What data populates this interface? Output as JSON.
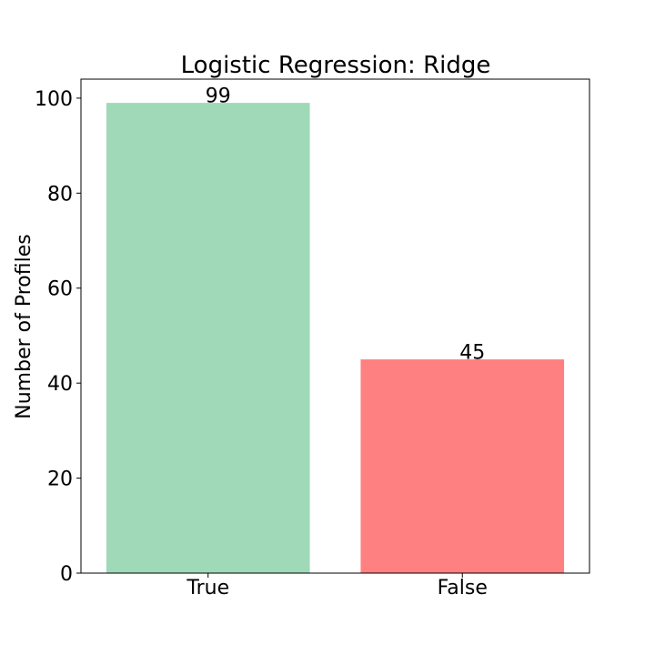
{
  "chart_data": {
    "type": "bar",
    "title": "Logistic Regression: Ridge",
    "xlabel": "",
    "ylabel": "Number of Profiles",
    "categories": [
      "True",
      "False"
    ],
    "values": [
      99,
      45
    ],
    "value_labels": [
      "99",
      "45"
    ],
    "colors": [
      "#9fd9b8",
      "#ff8080"
    ],
    "ylim": [
      0,
      104
    ],
    "yticks": [
      0,
      20,
      40,
      60,
      80,
      100
    ],
    "ytick_labels": [
      "0",
      "20",
      "40",
      "60",
      "80",
      "100"
    ],
    "grid": false,
    "legend": "none"
  }
}
